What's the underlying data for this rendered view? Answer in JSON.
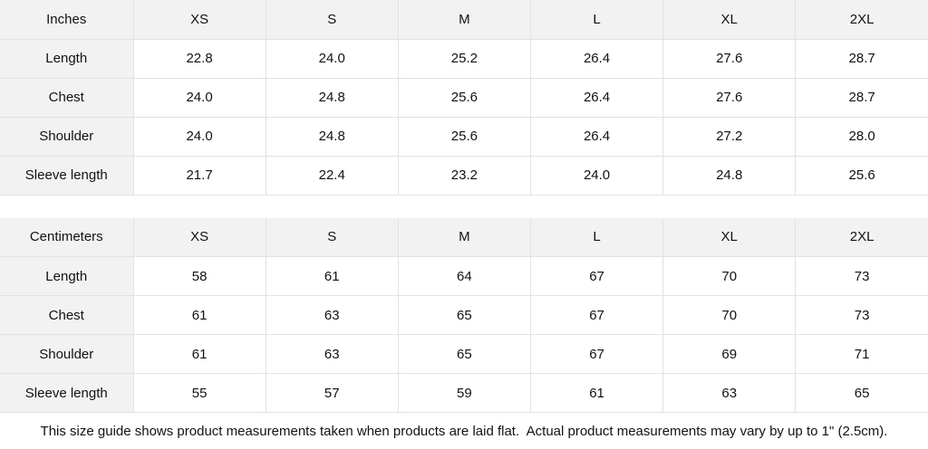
{
  "tables": [
    {
      "unit_label": "Inches",
      "sizes": [
        "XS",
        "S",
        "M",
        "L",
        "XL",
        "2XL"
      ],
      "rows": [
        {
          "label": "Length",
          "values": [
            "22.8",
            "24.0",
            "25.2",
            "26.4",
            "27.6",
            "28.7"
          ]
        },
        {
          "label": "Chest",
          "values": [
            "24.0",
            "24.8",
            "25.6",
            "26.4",
            "27.6",
            "28.7"
          ]
        },
        {
          "label": "Shoulder",
          "values": [
            "24.0",
            "24.8",
            "25.6",
            "26.4",
            "27.2",
            "28.0"
          ]
        },
        {
          "label": "Sleeve length",
          "values": [
            "21.7",
            "22.4",
            "23.2",
            "24.0",
            "24.8",
            "25.6"
          ]
        }
      ]
    },
    {
      "unit_label": "Centimeters",
      "sizes": [
        "XS",
        "S",
        "M",
        "L",
        "XL",
        "2XL"
      ],
      "rows": [
        {
          "label": "Length",
          "values": [
            "58",
            "61",
            "64",
            "67",
            "70",
            "73"
          ]
        },
        {
          "label": "Chest",
          "values": [
            "61",
            "63",
            "65",
            "67",
            "70",
            "73"
          ]
        },
        {
          "label": "Shoulder",
          "values": [
            "61",
            "63",
            "65",
            "67",
            "69",
            "71"
          ]
        },
        {
          "label": "Sleeve length",
          "values": [
            "55",
            "57",
            "59",
            "61",
            "63",
            "65"
          ]
        }
      ]
    }
  ],
  "footer": {
    "note": "This size guide shows product measurements taken when products are laid flat.  Actual product measurements may vary by up to 1\" (2.5cm)."
  },
  "colors": {
    "header_bg": "#f2f2f2",
    "border": "#e2e2e2",
    "text": "#121212",
    "background": "#ffffff"
  }
}
